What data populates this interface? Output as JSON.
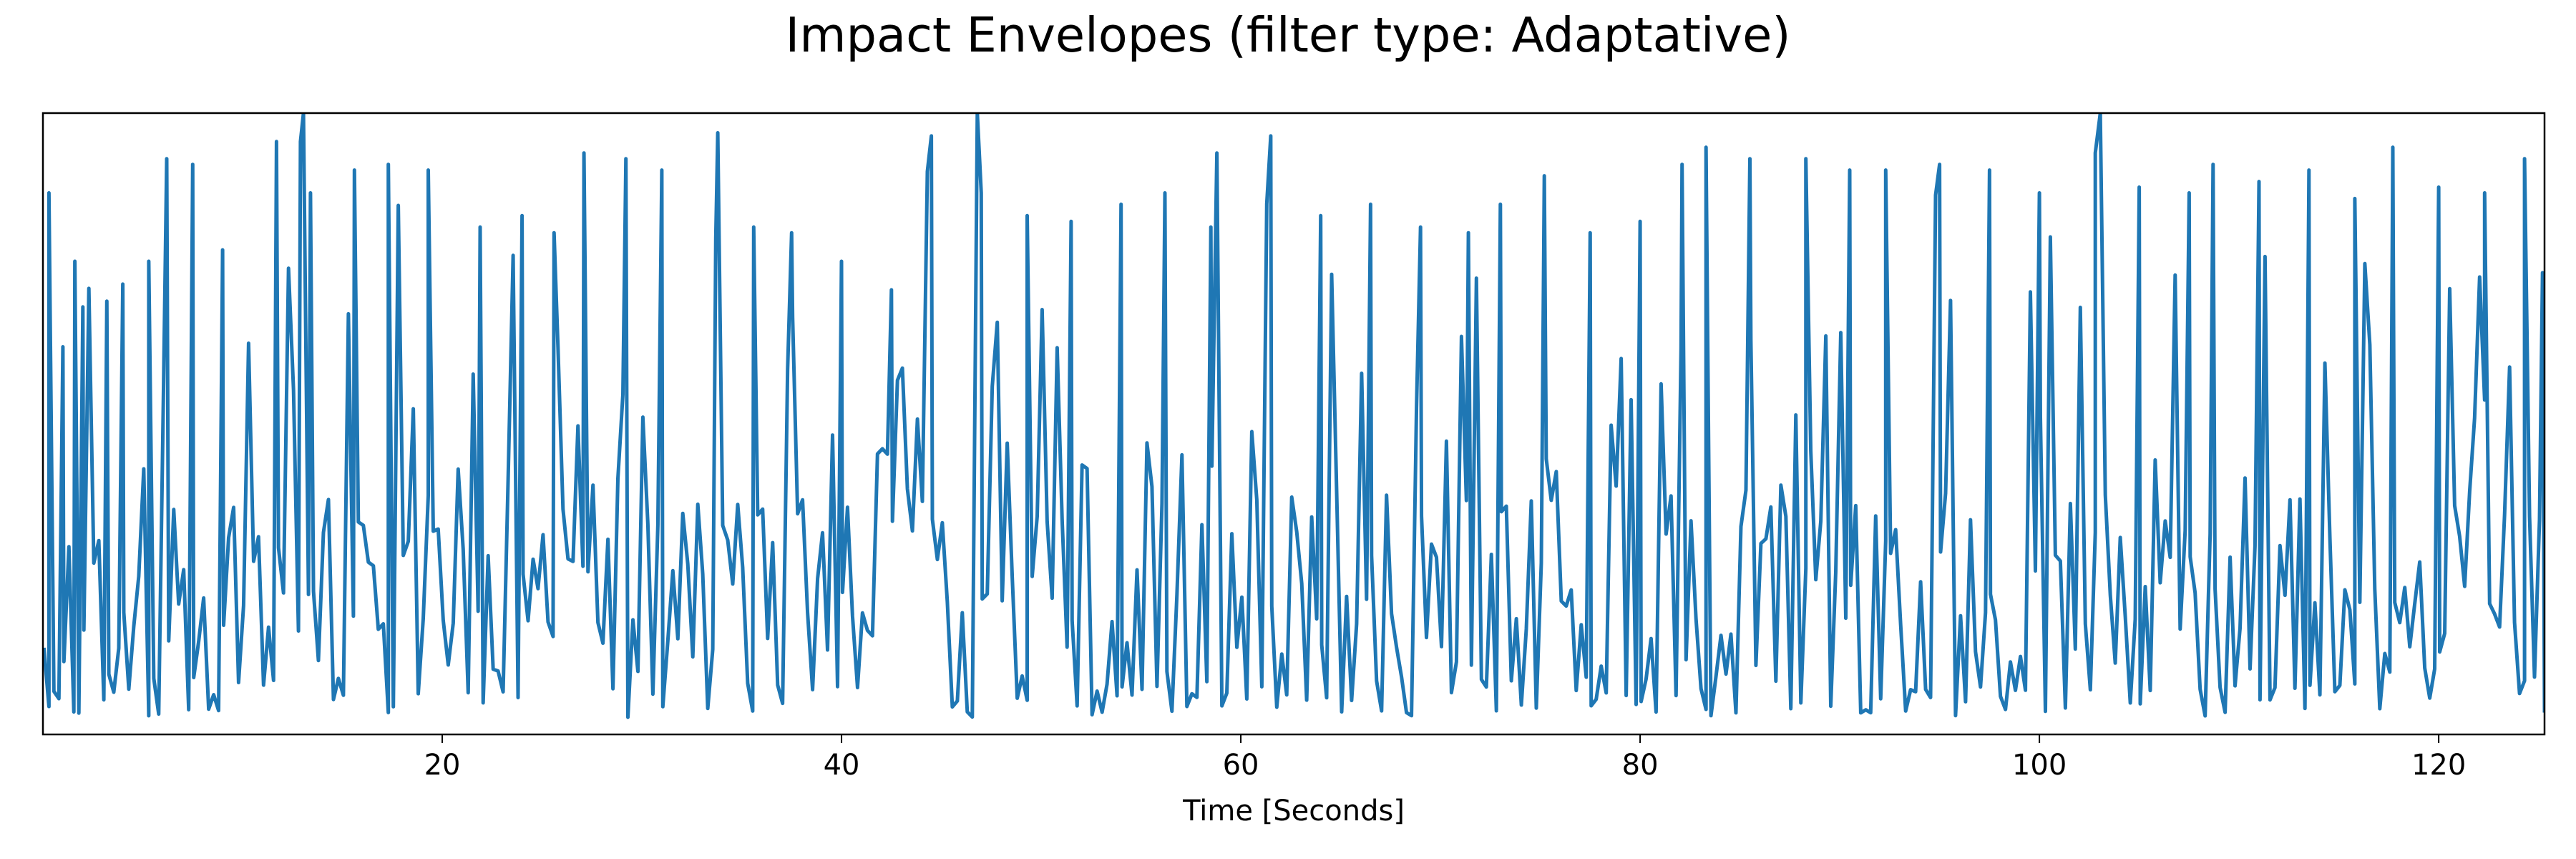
{
  "chart_data": {
    "type": "line",
    "title": "Impact Envelopes (filter type: Adaptative)",
    "xlabel": "Time [Seconds]",
    "ylabel": "",
    "xlim": [
      0,
      125.3
    ],
    "ylim": [
      -0.03,
      1.06
    ],
    "x_ticks": [
      20,
      40,
      60,
      80,
      100,
      120
    ],
    "x_tick_labels": [
      "20",
      "40",
      "60",
      "80",
      "100",
      "120"
    ],
    "y_ticks_visible": false,
    "grid": false,
    "series": [
      {
        "color": "#1f77b4",
        "approx_sample_interval_s": 0.25,
        "envelope_peaks": [
          {
            "t": 0.3,
            "v": 0.92
          },
          {
            "t": 1.0,
            "v": 0.65
          },
          {
            "t": 1.6,
            "v": 0.8
          },
          {
            "t": 2.0,
            "v": 0.72
          },
          {
            "t": 3.2,
            "v": 0.73
          },
          {
            "t": 4.0,
            "v": 0.76
          },
          {
            "t": 5.3,
            "v": 0.8
          },
          {
            "t": 6.2,
            "v": 0.98
          },
          {
            "t": 7.5,
            "v": 0.97
          },
          {
            "t": 9.0,
            "v": 0.82
          },
          {
            "t": 11.7,
            "v": 1.01
          },
          {
            "t": 12.9,
            "v": 1.01
          },
          {
            "t": 13.4,
            "v": 0.92
          },
          {
            "t": 15.6,
            "v": 0.96
          },
          {
            "t": 17.3,
            "v": 0.97
          },
          {
            "t": 19.3,
            "v": 0.96
          },
          {
            "t": 21.9,
            "v": 0.86
          },
          {
            "t": 24.0,
            "v": 0.88
          },
          {
            "t": 25.6,
            "v": 0.85
          },
          {
            "t": 27.1,
            "v": 0.99
          },
          {
            "t": 29.2,
            "v": 0.98
          },
          {
            "t": 31.0,
            "v": 0.96
          },
          {
            "t": 33.7,
            "v": 0.84
          },
          {
            "t": 35.6,
            "v": 0.86
          },
          {
            "t": 37.5,
            "v": 0.85
          },
          {
            "t": 40.0,
            "v": 0.8
          },
          {
            "t": 42.5,
            "v": 0.75
          },
          {
            "t": 44.5,
            "v": 1.02
          },
          {
            "t": 47.0,
            "v": 0.92
          },
          {
            "t": 49.3,
            "v": 0.88
          },
          {
            "t": 51.5,
            "v": 0.87
          },
          {
            "t": 54.0,
            "v": 0.9
          },
          {
            "t": 56.2,
            "v": 0.92
          },
          {
            "t": 58.5,
            "v": 0.86
          },
          {
            "t": 61.5,
            "v": 1.02
          },
          {
            "t": 64.0,
            "v": 0.88
          },
          {
            "t": 66.5,
            "v": 0.9
          },
          {
            "t": 69.0,
            "v": 0.86
          },
          {
            "t": 71.4,
            "v": 0.85
          },
          {
            "t": 73.0,
            "v": 0.9
          },
          {
            "t": 75.2,
            "v": 0.95
          },
          {
            "t": 77.5,
            "v": 0.85
          },
          {
            "t": 80.0,
            "v": 0.87
          },
          {
            "t": 82.1,
            "v": 0.97
          },
          {
            "t": 83.3,
            "v": 1.0
          },
          {
            "t": 85.5,
            "v": 0.98
          },
          {
            "t": 88.3,
            "v": 0.98
          },
          {
            "t": 90.5,
            "v": 0.96
          },
          {
            "t": 92.3,
            "v": 0.96
          },
          {
            "t": 95.0,
            "v": 0.97
          },
          {
            "t": 97.5,
            "v": 0.96
          },
          {
            "t": 100.0,
            "v": 0.92
          },
          {
            "t": 102.8,
            "v": 0.99
          },
          {
            "t": 105.0,
            "v": 0.93
          },
          {
            "t": 107.5,
            "v": 0.92
          },
          {
            "t": 108.7,
            "v": 0.97
          },
          {
            "t": 111.0,
            "v": 0.94
          },
          {
            "t": 113.5,
            "v": 0.96
          },
          {
            "t": 115.8,
            "v": 0.91
          },
          {
            "t": 117.7,
            "v": 1.0
          },
          {
            "t": 120.0,
            "v": 0.93
          },
          {
            "t": 122.3,
            "v": 0.92
          },
          {
            "t": 124.3,
            "v": 0.98
          },
          {
            "t": 125.2,
            "v": 0.78
          }
        ],
        "baseline_range": [
          0.0,
          0.4
        ],
        "noise_band_center": 0.22
      }
    ]
  }
}
